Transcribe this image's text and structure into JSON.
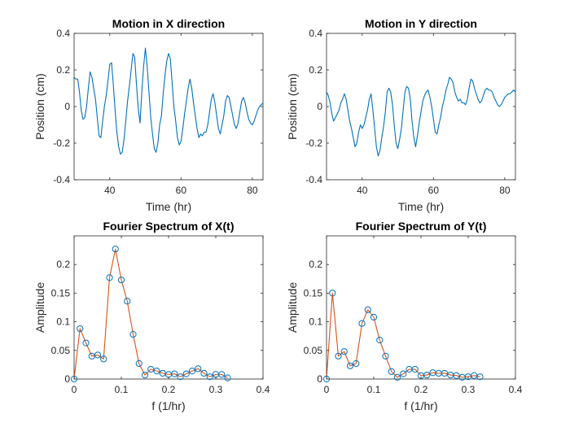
{
  "chart_data": [
    {
      "id": "x-motion",
      "type": "line",
      "title": "Motion in X direction",
      "xlabel": "Time (hr)",
      "ylabel": "Position (cm)",
      "xlim": [
        30,
        83
      ],
      "ylim": [
        -0.4,
        0.4
      ],
      "xticks": [
        40,
        60,
        80
      ],
      "yticks": [
        -0.4,
        -0.2,
        0,
        0.2,
        0.4
      ],
      "xtick_labels": [
        "40",
        "60",
        "80"
      ],
      "ytick_labels": [
        "-0.4",
        "-0.2",
        "0",
        "0.2",
        "0.4"
      ],
      "grid": false,
      "series": [
        {
          "color": "#0072BD",
          "markers": false,
          "x": [
            30.0,
            30.5,
            31.0,
            31.5,
            32.0,
            32.5,
            33.0,
            33.5,
            34.0,
            34.5,
            35.0,
            35.5,
            36.0,
            36.5,
            37.0,
            37.5,
            38.0,
            38.5,
            39.0,
            39.5,
            40.0,
            40.5,
            41.0,
            41.5,
            42.0,
            42.5,
            43.0,
            43.5,
            44.0,
            44.5,
            45.0,
            45.5,
            46.0,
            46.5,
            47.0,
            47.5,
            48.0,
            48.5,
            49.0,
            49.5,
            50.0,
            50.5,
            51.0,
            51.5,
            52.0,
            52.5,
            53.0,
            53.5,
            54.0,
            54.5,
            55.0,
            55.5,
            56.0,
            56.5,
            57.0,
            57.5,
            58.0,
            58.5,
            59.0,
            59.5,
            60.0,
            60.5,
            61.0,
            61.5,
            62.0,
            62.5,
            63.0,
            63.5,
            64.0,
            64.5,
            65.0,
            65.5,
            66.0,
            66.5,
            67.0,
            67.5,
            68.0,
            68.5,
            69.0,
            69.5,
            70.0,
            70.5,
            71.0,
            71.5,
            72.0,
            72.5,
            73.0,
            73.5,
            74.0,
            74.5,
            75.0,
            75.5,
            76.0,
            76.5,
            77.0,
            77.5,
            78.0,
            78.5,
            79.0,
            79.5,
            80.0,
            80.5,
            81.0,
            81.5,
            82.0,
            82.5,
            83.0
          ],
          "y": [
            0.16,
            0.15,
            0.15,
            0.08,
            -0.02,
            -0.07,
            -0.06,
            0.0,
            0.1,
            0.19,
            0.16,
            0.1,
            0.04,
            -0.06,
            -0.16,
            -0.17,
            -0.08,
            0.0,
            0.06,
            0.14,
            0.23,
            0.24,
            0.12,
            -0.02,
            -0.14,
            -0.22,
            -0.26,
            -0.25,
            -0.18,
            -0.08,
            0.03,
            0.11,
            0.2,
            0.29,
            0.27,
            0.12,
            -0.01,
            -0.09,
            0.08,
            0.22,
            0.32,
            0.22,
            0.08,
            -0.06,
            -0.15,
            -0.23,
            -0.25,
            -0.2,
            -0.1,
            -0.05,
            0.07,
            0.17,
            0.25,
            0.29,
            0.26,
            0.13,
            0.0,
            -0.08,
            -0.17,
            -0.21,
            -0.19,
            -0.12,
            -0.04,
            0.03,
            0.1,
            0.15,
            0.1,
            0.02,
            -0.05,
            -0.12,
            -0.17,
            -0.15,
            -0.16,
            -0.14,
            -0.14,
            -0.1,
            -0.03,
            0.04,
            0.07,
            0.02,
            -0.05,
            -0.12,
            -0.15,
            -0.1,
            -0.05,
            0.03,
            0.06,
            0.05,
            0.0,
            -0.05,
            -0.1,
            -0.12,
            -0.09,
            -0.03,
            0.03,
            0.05,
            0.02,
            -0.03,
            -0.07,
            -0.09,
            -0.1,
            -0.08,
            -0.05,
            -0.02,
            0.0,
            0.01,
            0.02
          ]
        }
      ]
    },
    {
      "id": "y-motion",
      "type": "line",
      "title": "Motion in Y direction",
      "xlabel": "Time (hr)",
      "ylabel": "Position (cm)",
      "xlim": [
        30,
        83
      ],
      "ylim": [
        -0.4,
        0.4
      ],
      "xticks": [
        40,
        60,
        80
      ],
      "yticks": [
        -0.4,
        -0.2,
        0,
        0.2,
        0.4
      ],
      "xtick_labels": [
        "40",
        "60",
        "80"
      ],
      "ytick_labels": [
        "-0.4",
        "-0.2",
        "0",
        "0.2",
        "0.4"
      ],
      "grid": false,
      "series": [
        {
          "color": "#0072BD",
          "markers": false,
          "x": [
            30.0,
            30.5,
            31.0,
            31.5,
            32.0,
            32.5,
            33.0,
            33.5,
            34.0,
            34.5,
            35.0,
            35.5,
            36.0,
            36.5,
            37.0,
            37.5,
            38.0,
            38.5,
            39.0,
            39.5,
            40.0,
            40.5,
            41.0,
            41.5,
            42.0,
            42.5,
            43.0,
            43.5,
            44.0,
            44.5,
            45.0,
            45.5,
            46.0,
            46.5,
            47.0,
            47.5,
            48.0,
            48.5,
            49.0,
            49.5,
            50.0,
            50.5,
            51.0,
            51.5,
            52.0,
            52.5,
            53.0,
            53.5,
            54.0,
            54.5,
            55.0,
            55.5,
            56.0,
            56.5,
            57.0,
            57.5,
            58.0,
            58.5,
            59.0,
            59.5,
            60.0,
            60.5,
            61.0,
            61.5,
            62.0,
            62.5,
            63.0,
            63.5,
            64.0,
            64.5,
            65.0,
            65.5,
            66.0,
            66.5,
            67.0,
            67.5,
            68.0,
            68.5,
            69.0,
            69.5,
            70.0,
            70.5,
            71.0,
            71.5,
            72.0,
            72.5,
            73.0,
            73.5,
            74.0,
            74.5,
            75.0,
            75.5,
            76.0,
            76.5,
            77.0,
            77.5,
            78.0,
            78.5,
            79.0,
            79.5,
            80.0,
            80.5,
            81.0,
            81.5,
            82.0,
            82.5,
            83.0
          ],
          "y": [
            0.08,
            0.06,
            0.02,
            -0.04,
            -0.08,
            -0.06,
            -0.04,
            -0.02,
            0.02,
            0.04,
            0.07,
            0.04,
            -0.02,
            -0.08,
            -0.12,
            -0.17,
            -0.22,
            -0.2,
            -0.14,
            -0.1,
            -0.12,
            -0.1,
            -0.06,
            -0.02,
            0.04,
            0.07,
            -0.02,
            -0.12,
            -0.22,
            -0.27,
            -0.24,
            -0.17,
            -0.11,
            -0.03,
            0.08,
            0.1,
            0.08,
            0.01,
            -0.1,
            -0.2,
            -0.23,
            -0.18,
            -0.12,
            -0.02,
            0.08,
            0.11,
            0.1,
            0.04,
            -0.08,
            -0.17,
            -0.22,
            -0.16,
            -0.09,
            -0.03,
            0.03,
            0.06,
            0.08,
            0.09,
            0.05,
            0.0,
            -0.07,
            -0.14,
            -0.15,
            -0.1,
            -0.06,
            0.0,
            0.04,
            0.09,
            0.12,
            0.16,
            0.15,
            0.13,
            0.08,
            0.05,
            0.03,
            0.04,
            0.02,
            0.02,
            0.01,
            0.04,
            0.1,
            0.15,
            0.14,
            0.1,
            0.07,
            0.04,
            0.02,
            0.03,
            0.06,
            0.09,
            0.1,
            0.09,
            0.09,
            0.08,
            0.05,
            0.03,
            0.01,
            0.0,
            0.01,
            0.03,
            0.05,
            0.06,
            0.07,
            0.07,
            0.08,
            0.09,
            0.08
          ]
        }
      ]
    },
    {
      "id": "x-spectrum",
      "type": "line",
      "title": "Fourier Spectrum of X(t)",
      "xlabel": "f (1/hr)",
      "ylabel": "Amplitude",
      "xlim": [
        0,
        0.4
      ],
      "ylim": [
        0,
        0.25
      ],
      "xticks": [
        0,
        0.1,
        0.2,
        0.3,
        0.4
      ],
      "yticks": [
        0,
        0.05,
        0.1,
        0.15,
        0.2
      ],
      "xtick_labels": [
        "0",
        "0.1",
        "0.2",
        "0.3",
        "0.4"
      ],
      "ytick_labels": [
        "0",
        "0.05",
        "0.1",
        "0.15",
        "0.2"
      ],
      "grid": false,
      "series": [
        {
          "color": "#D95319",
          "marker_color": "#0072BD",
          "markers": true,
          "x": [
            0.0,
            0.0125,
            0.025,
            0.0375,
            0.05,
            0.0625,
            0.075,
            0.0875,
            0.1,
            0.1125,
            0.125,
            0.1375,
            0.15,
            0.1625,
            0.175,
            0.1875,
            0.2,
            0.2125,
            0.225,
            0.2375,
            0.25,
            0.2625,
            0.275,
            0.2875,
            0.3,
            0.3125,
            0.325
          ],
          "y": [
            0.0,
            0.088,
            0.063,
            0.04,
            0.042,
            0.035,
            0.177,
            0.227,
            0.173,
            0.136,
            0.078,
            0.027,
            0.007,
            0.017,
            0.014,
            0.01,
            0.008,
            0.009,
            0.004,
            0.009,
            0.014,
            0.018,
            0.01,
            0.004,
            0.008,
            0.008,
            0.002
          ]
        }
      ]
    },
    {
      "id": "y-spectrum",
      "type": "line",
      "title": "Fourier Spectrum of Y(t)",
      "xlabel": "f (1/hr)",
      "ylabel": "Amplitude",
      "xlim": [
        0,
        0.4
      ],
      "ylim": [
        0,
        0.25
      ],
      "xticks": [
        0,
        0.1,
        0.2,
        0.3,
        0.4
      ],
      "yticks": [
        0,
        0.05,
        0.1,
        0.15,
        0.2
      ],
      "xtick_labels": [
        "0",
        "0.1",
        "0.2",
        "0.3",
        "0.4"
      ],
      "ytick_labels": [
        "0",
        "0.05",
        "0.1",
        "0.15",
        "0.2"
      ],
      "grid": false,
      "series": [
        {
          "color": "#D95319",
          "marker_color": "#0072BD",
          "markers": true,
          "x": [
            0.0,
            0.0125,
            0.025,
            0.0375,
            0.05,
            0.0625,
            0.075,
            0.0875,
            0.1,
            0.1125,
            0.125,
            0.1375,
            0.15,
            0.1625,
            0.175,
            0.1875,
            0.2,
            0.2125,
            0.225,
            0.2375,
            0.25,
            0.2625,
            0.275,
            0.2875,
            0.3,
            0.3125,
            0.325
          ],
          "y": [
            0.0,
            0.15,
            0.04,
            0.048,
            0.023,
            0.027,
            0.097,
            0.121,
            0.108,
            0.068,
            0.04,
            0.013,
            0.003,
            0.009,
            0.017,
            0.017,
            0.006,
            0.007,
            0.011,
            0.01,
            0.01,
            0.007,
            0.006,
            0.003,
            0.004,
            0.006,
            0.004
          ]
        }
      ]
    }
  ]
}
